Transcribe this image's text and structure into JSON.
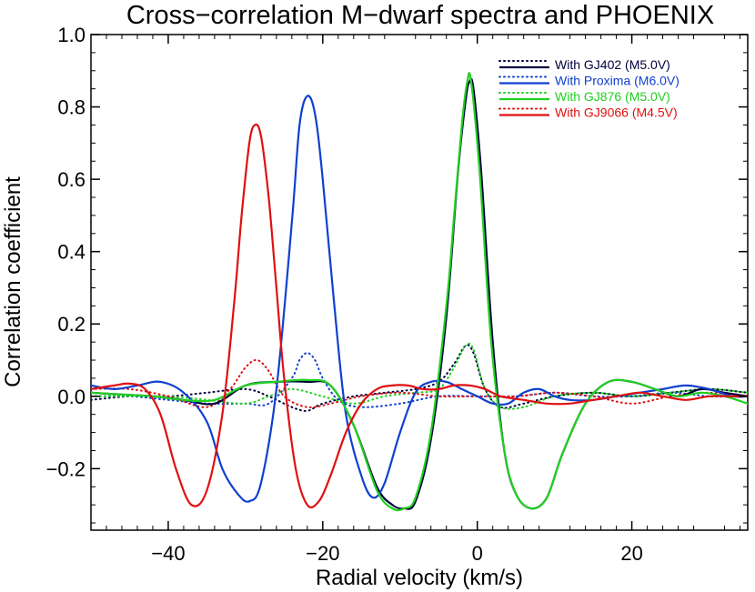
{
  "chart_data": {
    "type": "line",
    "title": "Cross−correlation M−dwarf spectra and PHOENIX",
    "xlabel": "Radial velocity (km/s)",
    "ylabel": "Correlation coefficient",
    "xlim": [
      -50,
      35
    ],
    "ylim": [
      -0.37,
      1.0
    ],
    "x_ticks": [
      -40,
      -20,
      0,
      20
    ],
    "x_tick_labels": [
      "−40",
      "−20",
      "0",
      "20"
    ],
    "y_ticks": [
      1.0,
      0.8,
      0.6,
      0.4,
      0.2,
      0.0,
      -0.2
    ],
    "y_tick_labels": [
      "1.0",
      "0.8",
      "0.6",
      "0.4",
      "0.2",
      "0.0",
      "−0.2"
    ],
    "grid": false,
    "legend_position": "top-right",
    "legend": [
      {
        "label": "With GJ402 (M5.0V)",
        "color": "#00003c"
      },
      {
        "label": "With Proxima (M6.0V)",
        "color": "#1040d0"
      },
      {
        "label": "With GJ876 (M5.0V)",
        "color": "#20d020"
      },
      {
        "label": "With GJ9066 (M4.5V)",
        "color": "#e01010"
      }
    ],
    "series": [
      {
        "legend_index": 0,
        "style": "solid",
        "color": "#00003c",
        "x": [
          -50,
          -46,
          -42,
          -38,
          -34,
          -30,
          -26,
          -22,
          -19,
          -16,
          -13,
          -11,
          -9.5,
          -8,
          -6,
          -4,
          -2.5,
          -1.5,
          -1,
          -0.5,
          0.5,
          2,
          3.5,
          5,
          7,
          9,
          11,
          14,
          17,
          20,
          23,
          26,
          29,
          32,
          35
        ],
        "y": [
          0.01,
          0.005,
          0.0,
          -0.01,
          -0.02,
          0.03,
          0.04,
          0.04,
          0.03,
          -0.08,
          -0.25,
          -0.3,
          -0.31,
          -0.29,
          -0.12,
          0.22,
          0.62,
          0.82,
          0.87,
          0.85,
          0.62,
          0.15,
          -0.15,
          -0.27,
          -0.31,
          -0.28,
          -0.16,
          -0.02,
          0.04,
          0.04,
          0.02,
          0.0,
          0.02,
          0.01,
          0.0
        ]
      },
      {
        "legend_index": 0,
        "style": "dotted",
        "color": "#00003c",
        "x": [
          -50,
          -45,
          -40,
          -35,
          -30,
          -27,
          -24,
          -22,
          -20,
          -16,
          -12,
          -8,
          -5,
          -3,
          -1.5,
          -0.5,
          1,
          3,
          6,
          10,
          15,
          20,
          25,
          30,
          35
        ],
        "y": [
          -0.01,
          0.0,
          0.0,
          0.01,
          0.02,
          0.0,
          -0.03,
          -0.04,
          -0.02,
          0.0,
          0.01,
          0.02,
          0.04,
          0.09,
          0.14,
          0.12,
          0.02,
          -0.03,
          -0.02,
          0.0,
          0.01,
          0.0,
          0.01,
          0.02,
          0.01
        ]
      },
      {
        "legend_index": 1,
        "style": "solid",
        "color": "#1040d0",
        "x": [
          -50,
          -47,
          -44,
          -41,
          -38,
          -35,
          -33,
          -31,
          -29.5,
          -28,
          -26,
          -24,
          -23,
          -22,
          -21,
          -20,
          -18.5,
          -17,
          -15,
          -13.5,
          -12,
          -10,
          -8,
          -6,
          -4,
          -2,
          0,
          2,
          4,
          6,
          8,
          10,
          12,
          15,
          18,
          21,
          24,
          27,
          30,
          33,
          35
        ],
        "y": [
          0.03,
          0.02,
          0.03,
          0.04,
          0.01,
          -0.07,
          -0.2,
          -0.27,
          -0.29,
          -0.24,
          0.02,
          0.48,
          0.75,
          0.83,
          0.78,
          0.6,
          0.25,
          -0.05,
          -0.22,
          -0.28,
          -0.24,
          -0.1,
          0.01,
          0.04,
          0.04,
          0.02,
          0.0,
          -0.02,
          -0.02,
          0.01,
          0.02,
          0.0,
          -0.01,
          -0.01,
          0.0,
          0.01,
          0.02,
          0.03,
          0.02,
          0.0,
          0.0
        ]
      },
      {
        "legend_index": 1,
        "style": "dotted",
        "color": "#1040d0",
        "x": [
          -50,
          -45,
          -40,
          -35,
          -30,
          -27,
          -24,
          -23,
          -22,
          -21,
          -20,
          -18,
          -15,
          -10,
          -5,
          0,
          5,
          10,
          15,
          20,
          25,
          30,
          35
        ],
        "y": [
          0.0,
          0.0,
          -0.01,
          -0.02,
          -0.02,
          -0.02,
          0.05,
          0.1,
          0.12,
          0.1,
          0.05,
          -0.01,
          -0.03,
          -0.02,
          0.0,
          0.0,
          0.0,
          0.01,
          0.0,
          0.0,
          0.01,
          0.0,
          0.0
        ]
      },
      {
        "legend_index": 2,
        "style": "solid",
        "color": "#20d020",
        "x": [
          -50,
          -46,
          -42,
          -38,
          -34,
          -30,
          -26,
          -22,
          -19,
          -16,
          -13,
          -11,
          -9.5,
          -8,
          -6,
          -4,
          -3,
          -2,
          -1.3,
          -0.8,
          0.3,
          1.8,
          3.5,
          5,
          7,
          9,
          11,
          14,
          17,
          20,
          23,
          26,
          29,
          32,
          35
        ],
        "y": [
          0.01,
          0.005,
          0.0,
          -0.01,
          -0.01,
          0.03,
          0.04,
          0.045,
          0.03,
          -0.08,
          -0.26,
          -0.31,
          -0.31,
          -0.28,
          -0.1,
          0.25,
          0.5,
          0.75,
          0.87,
          0.87,
          0.62,
          0.15,
          -0.15,
          -0.27,
          -0.31,
          -0.28,
          -0.16,
          -0.02,
          0.04,
          0.04,
          0.02,
          0.0,
          0.01,
          0.0,
          -0.02
        ]
      },
      {
        "legend_index": 2,
        "style": "dotted",
        "color": "#20d020",
        "x": [
          -50,
          -45,
          -40,
          -35,
          -30,
          -27,
          -24,
          -20,
          -16,
          -12,
          -8,
          -5,
          -3,
          -1.5,
          -0.5,
          1,
          3,
          6,
          10,
          15,
          20,
          25,
          30,
          35
        ],
        "y": [
          0.0,
          0.0,
          0.0,
          -0.01,
          -0.02,
          0.0,
          0.02,
          0.0,
          -0.02,
          0.0,
          0.01,
          0.02,
          0.08,
          0.14,
          0.13,
          0.02,
          -0.03,
          -0.03,
          0.0,
          0.01,
          0.0,
          0.01,
          0.02,
          0.01
        ]
      },
      {
        "legend_index": 3,
        "style": "solid",
        "color": "#e01010",
        "x": [
          -50,
          -47,
          -45,
          -43,
          -41,
          -39,
          -37,
          -35,
          -33,
          -31.5,
          -30.5,
          -29.5,
          -28.8,
          -28,
          -27,
          -26,
          -25,
          -23.5,
          -22,
          -20.5,
          -19,
          -17,
          -15,
          -13,
          -11,
          -9,
          -7,
          -5,
          -3,
          -1,
          1,
          3,
          6,
          9,
          12,
          15,
          18,
          21,
          24,
          27,
          30,
          33,
          35
        ],
        "y": [
          0.02,
          0.03,
          0.035,
          0.02,
          -0.05,
          -0.2,
          -0.3,
          -0.26,
          -0.05,
          0.25,
          0.5,
          0.7,
          0.75,
          0.72,
          0.55,
          0.3,
          0.05,
          -0.2,
          -0.3,
          -0.29,
          -0.22,
          -0.1,
          -0.02,
          0.02,
          0.03,
          0.03,
          0.02,
          0.02,
          0.03,
          0.03,
          0.02,
          0.0,
          -0.01,
          -0.02,
          -0.02,
          -0.01,
          0.0,
          0.01,
          0.0,
          -0.01,
          0.0,
          0.0,
          0.0
        ]
      },
      {
        "legend_index": 3,
        "style": "dotted",
        "color": "#e01010",
        "x": [
          -50,
          -45,
          -40,
          -35,
          -32,
          -30,
          -28.5,
          -27,
          -25,
          -22,
          -19,
          -15,
          -10,
          -5,
          0,
          5,
          10,
          15,
          20,
          25,
          30,
          35
        ],
        "y": [
          0.02,
          0.02,
          0.0,
          -0.03,
          0.02,
          0.08,
          0.1,
          0.07,
          0.0,
          -0.03,
          -0.02,
          0.0,
          0.01,
          0.0,
          0.0,
          0.0,
          0.01,
          0.0,
          -0.02,
          0.0,
          0.01,
          0.0
        ]
      }
    ]
  }
}
